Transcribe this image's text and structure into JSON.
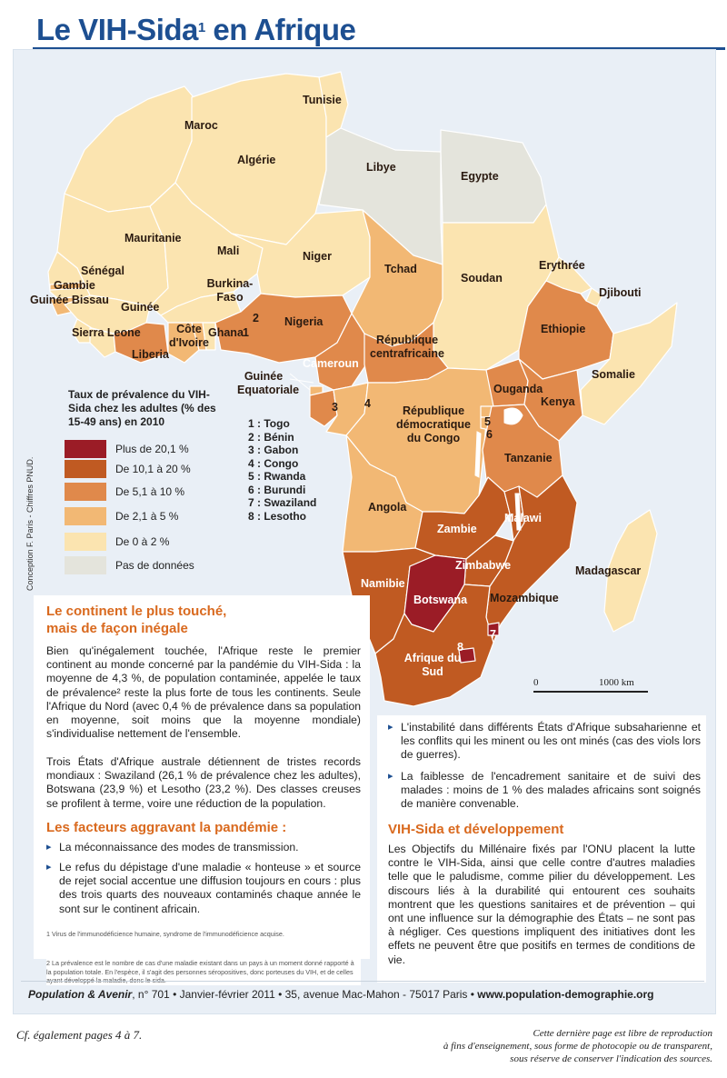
{
  "header": {
    "title": "Le VIH-Sida",
    "title_sup": "1",
    "title_tail": " en Afrique"
  },
  "colors": {
    "class_1": "#9b1c26",
    "class_2": "#c05a22",
    "class_3": "#e0894b",
    "class_4": "#f2b874",
    "class_5": "#fbe4b0",
    "class_6": "#e4e4dc",
    "sea": "#e9eff6",
    "accent": "#1d4f91",
    "heading": "#d9691e"
  },
  "legend": {
    "title": "Taux de prévalence du VIH-Sida chez les adultes (% des 15-49 ans) en 2010",
    "classes": [
      {
        "label": "Plus de 20,1 %",
        "color": "#9b1c26"
      },
      {
        "label": "De 10,1 à 20 %",
        "color": "#c05a22"
      },
      {
        "label": "De 5,1 à 10 %",
        "color": "#e0894b"
      },
      {
        "label": "De 2,1 à 5 %",
        "color": "#f2b874"
      },
      {
        "label": "De 0 à 2 %",
        "color": "#fbe4b0"
      },
      {
        "label": "Pas de données",
        "color": "#e4e4dc"
      }
    ]
  },
  "numbered": [
    "1 : Togo",
    "2 : Bénin",
    "3 : Gabon",
    "4 : Congo",
    "5 : Rwanda",
    "6 : Burundi",
    "7 : Swaziland",
    "8 : Lesotho"
  ],
  "credit": "Conception F. Paris - Chiffres PNUD.",
  "countries": {
    "tunisie": "Tunisie",
    "maroc": "Maroc",
    "algerie": "Algérie",
    "libye": "Libye",
    "egypte": "Egypte",
    "mauritanie": "Mauritanie",
    "mali": "Mali",
    "niger": "Niger",
    "tchad": "Tchad",
    "soudan": "Soudan",
    "erythree": "Erythrée",
    "djibouti": "Djibouti",
    "senegal": "Sénégal",
    "gambie": "Gambie",
    "guinee_bissau": "Guinée Bissau",
    "guinee": "Guinée",
    "burkina": "Burkina-Faso",
    "sierra_leone": "Sierra Leone",
    "liberia": "Liberia",
    "cote_ivoire": "Côte d'Ivoire",
    "ghana": "Ghana",
    "n1": "1",
    "n2": "2",
    "nigeria": "Nigeria",
    "ethiopie": "Ethiopie",
    "somalie": "Somalie",
    "rca": "République centrafricaine",
    "cameroun": "Cameroun",
    "guinee_eq": "Guinée Equatoriale",
    "n3": "3",
    "n4": "4",
    "rdc": "République démocratique du Congo",
    "ouganda": "Ouganda",
    "kenya": "Kenya",
    "n5": "5",
    "n6": "6",
    "tanzanie": "Tanzanie",
    "angola": "Angola",
    "zambie": "Zambie",
    "malawi": "Malawi",
    "namibie": "Namibie",
    "zimbabwe": "Zimbabwe",
    "botswana": "Botswana",
    "mozambique": "Mozambique",
    "madagascar": "Madagascar",
    "afrique_sud": "Afrique du Sud",
    "n7": "7",
    "n8": "8"
  },
  "scale": {
    "zero": "0",
    "label": "1000 km"
  },
  "section1": {
    "heading_line1": "Le continent le plus touché,",
    "heading_line2": "mais de façon inégale",
    "para1": "Bien qu'inégalement touchée, l'Afrique reste le premier continent au monde concerné par la pandémie du VIH-Sida : la moyenne de 4,3 %, de population contaminée, appelée le taux de prévalence² reste la plus forte de tous les continents. Seule l'Afrique du Nord (avec 0,4 % de prévalence dans sa population en moyenne, soit moins que la moyenne mondiale) s'individualise nettement de l'ensemble.",
    "para2": "Trois États d'Afrique australe détiennent de tristes records mondiaux : Swaziland (26,1 % de prévalence chez les adultes), Botswana (23,9 %) et Lesotho (23,2 %). Des classes creuses se profilent à terme, voire une réduction de la population."
  },
  "section2": {
    "heading": "Les facteurs aggravant la pandémie :",
    "bullet1": "La méconnaissance des modes de transmission.",
    "bullet2": "Le refus du dépistage d'une maladie « honteuse » et source de rejet social accentue une diffusion toujours en cours : plus des trois quarts des nouveaux contaminés chaque année le sont sur le continent africain.",
    "bullet3": "L'instabilité dans différents États d'Afrique subsaharienne et les conflits qui les minent ou les ont minés (cas des viols lors de guerres).",
    "bullet4": "La faiblesse de l'encadrement sanitaire et de suivi des malades : moins de 1 % des malades africains sont soignés de manière convenable."
  },
  "section3": {
    "heading": "VIH-Sida et développement",
    "para": "Les Objectifs du Millénaire fixés par l'ONU placent la lutte contre le VIH-Sida, ainsi que celle contre d'autres maladies telle que le paludisme, comme pilier du développement. Les discours liés à la durabilité qui entourent ces souhaits montrent que les questions sanitaires et de prévention – qui ont une influence sur la démographie des États – ne sont pas à négliger. Ces questions impliquent des initiatives dont les effets ne peuvent être que positifs en termes de conditions de vie."
  },
  "footnotes": {
    "fn1": "1 Virus de l'immunodéficience humaine, syndrome de l'immunodéficience acquise.",
    "fn2": "2 La prévalence est le nombre de cas d'une maladie existant dans un pays à un moment donné rapporté à la population totale. En l'espèce, il s'agit des personnes séropositives, donc porteuses du VIH, et de celles ayant développé la maladie, donc le sida."
  },
  "footer": {
    "magazine": "Population & Avenir",
    "issue": ", n° 701 • Janvier-février 2011 • 35, avenue Mac-Mahon - 75017 Paris • ",
    "url": "www.population-demographie.org"
  },
  "bottom": {
    "left": "Cf. également pages 4 à 7.",
    "right_line1": "Cette dernière page est libre de reproduction",
    "right_line2": "à fins d'enseignement, sous forme de photocopie ou de transparent,",
    "right_line3": "sous réserve de conserver l'indication des sources."
  }
}
